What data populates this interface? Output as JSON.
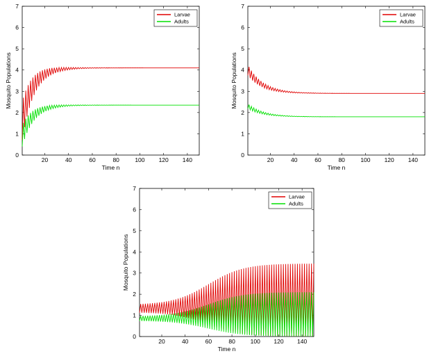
{
  "chart_data": [
    {
      "type": "line",
      "panel": "top-left",
      "title": "",
      "xlabel": "Time n",
      "ylabel": "Mosquito Populations",
      "xlim": [
        1,
        150
      ],
      "ylim": [
        0,
        7
      ],
      "xticks": [
        20,
        40,
        60,
        80,
        100,
        120,
        140
      ],
      "yticks": [
        0,
        1,
        2,
        3,
        4,
        5,
        6,
        7
      ],
      "legend_position": "top-right",
      "behavior": "damped oscillation converging to equilibrium",
      "series": [
        {
          "name": "Larvae",
          "color": "#e00000",
          "start": 1.6,
          "equilibrium": 4.1,
          "initial_amplitude": 0.9,
          "rise_rate": 0.11,
          "decay_rate": 0.07,
          "period": 2
        },
        {
          "name": "Adults",
          "color": "#00e000",
          "start": 0.9,
          "equilibrium": 2.35,
          "initial_amplitude": 0.5,
          "rise_rate": 0.11,
          "decay_rate": 0.07,
          "period": 2
        }
      ]
    },
    {
      "type": "line",
      "panel": "top-right",
      "title": "",
      "xlabel": "Time n",
      "ylabel": "Mosquito Populations",
      "xlim": [
        1,
        150
      ],
      "ylim": [
        0,
        7
      ],
      "xticks": [
        20,
        40,
        60,
        80,
        100,
        120,
        140
      ],
      "yticks": [
        0,
        1,
        2,
        3,
        4,
        5,
        6,
        7
      ],
      "legend_position": "top-right",
      "behavior": "damped oscillation decaying to equilibrium",
      "series": [
        {
          "name": "Larvae",
          "color": "#e00000",
          "start": 4.0,
          "equilibrium": 2.9,
          "initial_amplitude": 0.25,
          "rise_rate": 0.08,
          "decay_rate": 0.06,
          "period": 2
        },
        {
          "name": "Adults",
          "color": "#00e000",
          "start": 2.3,
          "equilibrium": 1.8,
          "initial_amplitude": 0.12,
          "rise_rate": 0.08,
          "decay_rate": 0.06,
          "period": 2
        }
      ]
    },
    {
      "type": "line",
      "panel": "bottom",
      "title": "",
      "xlabel": "Time n",
      "ylabel": "Mosquito Populations",
      "xlim": [
        1,
        150
      ],
      "ylim": [
        0,
        7
      ],
      "xticks": [
        20,
        40,
        60,
        80,
        100,
        120,
        140
      ],
      "yticks": [
        0,
        1,
        2,
        3,
        4,
        5,
        6,
        7
      ],
      "legend_position": "top-right",
      "behavior": "growing period-2 oscillation saturating",
      "series": [
        {
          "name": "Larvae",
          "color": "#e00000",
          "upper_start": 1.5,
          "upper_end": 3.45,
          "lower_start": 1.15,
          "lower_end": 0.0,
          "period": 2
        },
        {
          "name": "Adults",
          "color": "#00e000",
          "upper_start": 0.95,
          "upper_end": 2.1,
          "lower_start": 0.75,
          "lower_end": 0.0,
          "period": 2
        }
      ]
    }
  ]
}
